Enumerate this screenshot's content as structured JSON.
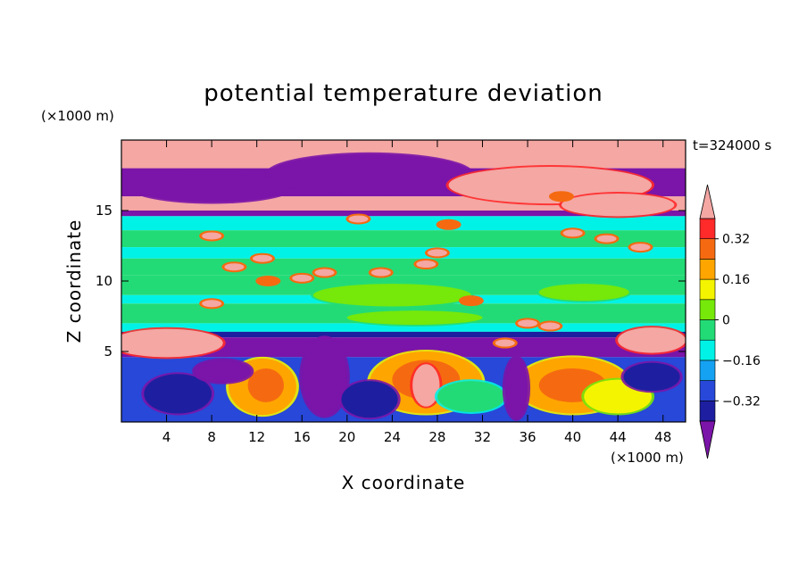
{
  "chart_data": {
    "type": "heatmap",
    "title": "potential temperature deviation",
    "xlabel": "X coordinate",
    "ylabel": "Z coordinate",
    "x_unit": "(×1000 m)",
    "y_unit": "(×1000 m)",
    "time_label": "t=324000 s",
    "xlim": [
      0,
      50
    ],
    "ylim": [
      0,
      20
    ],
    "x_ticks": [
      4,
      8,
      12,
      16,
      20,
      24,
      28,
      32,
      36,
      40,
      44,
      48
    ],
    "y_ticks": [
      5,
      10,
      15
    ],
    "colorbar": {
      "levels": [
        -0.4,
        -0.32,
        -0.24,
        -0.16,
        -0.08,
        0,
        0.08,
        0.16,
        0.24,
        0.32,
        0.4
      ],
      "tick_labels": [
        "0.32",
        "0.16",
        "0",
        "−0.16",
        "−0.32"
      ],
      "tick_values": [
        0.32,
        0.16,
        0,
        -0.16,
        -0.32
      ],
      "colors": [
        "#7b14a8",
        "#1d1fa0",
        "#2748d8",
        "#16a2f2",
        "#00f2e6",
        "#23db76",
        "#76e80a",
        "#f4f400",
        "#ffa500",
        "#f56a10",
        "#ff2a2a",
        "#f4a7a3"
      ]
    },
    "bands": [
      {
        "z": [
          18.0,
          20.0
        ],
        "level": 11
      },
      {
        "z": [
          16.0,
          18.0
        ],
        "level": 0
      },
      {
        "z": [
          15.0,
          16.0
        ],
        "level": 11
      },
      {
        "z": [
          14.6,
          15.0
        ],
        "level": 0
      },
      {
        "z": [
          13.6,
          14.6
        ],
        "level": 4
      },
      {
        "z": [
          12.4,
          13.6
        ],
        "level": 5
      },
      {
        "z": [
          11.6,
          12.4
        ],
        "level": 4
      },
      {
        "z": [
          10.4,
          11.6
        ],
        "level": 5
      },
      {
        "z": [
          9.0,
          10.4
        ],
        "level": 5
      },
      {
        "z": [
          8.4,
          9.0
        ],
        "level": 4
      },
      {
        "z": [
          7.0,
          8.4
        ],
        "level": 5
      },
      {
        "z": [
          6.4,
          7.0
        ],
        "level": 4
      },
      {
        "z": [
          6.0,
          6.4
        ],
        "level": 1
      },
      {
        "z": [
          4.6,
          6.0
        ],
        "level": 0
      },
      {
        "z": [
          0.0,
          4.6
        ],
        "level": 2
      }
    ],
    "blobs": [
      {
        "x": 22,
        "z": 17.6,
        "rx": 9,
        "rz": 1.4,
        "level": 0
      },
      {
        "x": 38,
        "z": 16.8,
        "rx": 9,
        "rz": 1.3,
        "level": 11
      },
      {
        "x": 8,
        "z": 16.6,
        "rx": 7,
        "rz": 1.0,
        "level": 0
      },
      {
        "x": 44,
        "z": 15.4,
        "rx": 5,
        "rz": 0.8,
        "level": 11
      },
      {
        "x": 24,
        "z": 9.0,
        "rx": 7,
        "rz": 0.8,
        "level": 6
      },
      {
        "x": 41,
        "z": 9.2,
        "rx": 4,
        "rz": 0.6,
        "level": 6
      },
      {
        "x": 26,
        "z": 7.4,
        "rx": 6,
        "rz": 0.5,
        "level": 6
      },
      {
        "x": 4,
        "z": 5.6,
        "rx": 5,
        "rz": 1.0,
        "level": 11
      },
      {
        "x": 47,
        "z": 5.8,
        "rx": 3,
        "rz": 0.9,
        "level": 11
      },
      {
        "x": 18,
        "z": 3.2,
        "rx": 2,
        "rz": 2.8,
        "level": 0
      },
      {
        "x": 12.5,
        "z": 2.5,
        "rx": 3,
        "rz": 2.0,
        "level": 8
      },
      {
        "x": 12.8,
        "z": 2.6,
        "rx": 1.6,
        "rz": 1.2,
        "level": 9
      },
      {
        "x": 27,
        "z": 2.8,
        "rx": 5,
        "rz": 2.2,
        "level": 8
      },
      {
        "x": 27,
        "z": 3.0,
        "rx": 3,
        "rz": 1.4,
        "level": 9
      },
      {
        "x": 27,
        "z": 2.6,
        "rx": 1.2,
        "rz": 1.5,
        "level": 11
      },
      {
        "x": 40,
        "z": 2.6,
        "rx": 5,
        "rz": 2.0,
        "level": 8
      },
      {
        "x": 40,
        "z": 2.6,
        "rx": 3,
        "rz": 1.2,
        "level": 9
      },
      {
        "x": 44,
        "z": 1.8,
        "rx": 3,
        "rz": 1.2,
        "level": 7
      },
      {
        "x": 5,
        "z": 2.0,
        "rx": 3,
        "rz": 1.4,
        "level": 1
      },
      {
        "x": 31,
        "z": 1.8,
        "rx": 3,
        "rz": 1.1,
        "level": 5
      },
      {
        "x": 22,
        "z": 1.6,
        "rx": 2.5,
        "rz": 1.3,
        "level": 1
      },
      {
        "x": 35,
        "z": 2.4,
        "rx": 1.0,
        "rz": 2.2,
        "level": 0
      },
      {
        "x": 9,
        "z": 3.6,
        "rx": 2.5,
        "rz": 0.8,
        "level": 0
      },
      {
        "x": 47,
        "z": 3.2,
        "rx": 2.5,
        "rz": 1.0,
        "level": 1
      }
    ],
    "patches": [
      {
        "x": 10,
        "z": 11.0,
        "level": 11
      },
      {
        "x": 12.5,
        "z": 11.6,
        "level": 11
      },
      {
        "x": 16,
        "z": 10.2,
        "level": 11
      },
      {
        "x": 18,
        "z": 10.6,
        "level": 11
      },
      {
        "x": 23,
        "z": 10.6,
        "level": 11
      },
      {
        "x": 27,
        "z": 11.2,
        "level": 11
      },
      {
        "x": 28,
        "z": 12.0,
        "level": 11
      },
      {
        "x": 21,
        "z": 14.4,
        "level": 11
      },
      {
        "x": 40,
        "z": 13.4,
        "level": 11
      },
      {
        "x": 43,
        "z": 13.0,
        "level": 11
      },
      {
        "x": 46,
        "z": 12.4,
        "level": 11
      },
      {
        "x": 8,
        "z": 8.4,
        "level": 11
      },
      {
        "x": 36,
        "z": 7.0,
        "level": 11
      },
      {
        "x": 38,
        "z": 6.8,
        "level": 11
      },
      {
        "x": 34,
        "z": 5.6,
        "level": 11
      },
      {
        "x": 8,
        "z": 13.2,
        "level": 11
      },
      {
        "x": 31,
        "z": 8.6,
        "level": 9
      },
      {
        "x": 13,
        "z": 10.0,
        "level": 9
      },
      {
        "x": 29,
        "z": 14.0,
        "level": 9
      },
      {
        "x": 39,
        "z": 16.0,
        "level": 9
      }
    ]
  }
}
